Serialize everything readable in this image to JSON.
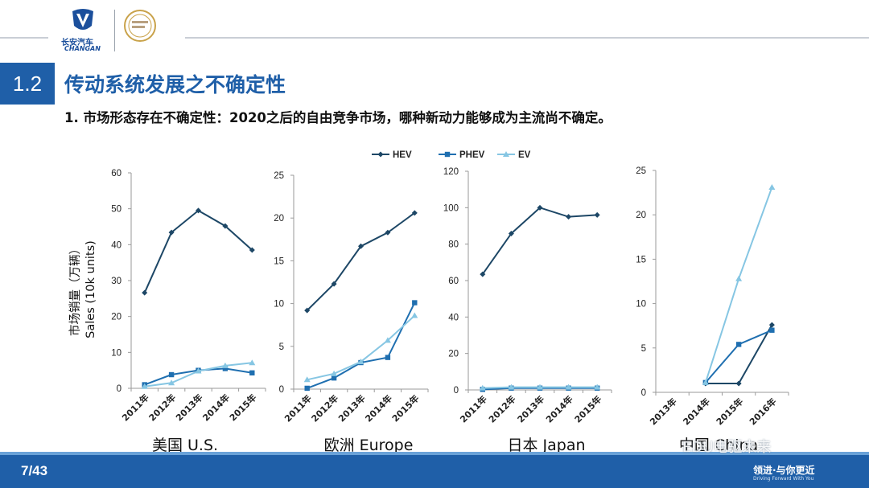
{
  "header": {
    "logo_cn": "长安汽车",
    "logo_en": "CHANGAN",
    "section_number": "1.2",
    "section_title": "传动系统发展之不确定性",
    "subtitle": "1. 市场形态存在不确定性：2020之后的自由竞争市场，哪种新动力能够成为主流尚不确定。"
  },
  "footer": {
    "page": "7/43",
    "slogan": "领进·与你更近",
    "slogan_en": "Driving Forward With You",
    "watermark": "EDU电驱未来"
  },
  "colors": {
    "HEV": "#1d4766",
    "PHEV": "#1f6fb0",
    "EV": "#86c6e3",
    "accent": "#1f5fa8"
  },
  "chart_data": [
    {
      "type": "line",
      "title": "美国 U.S.",
      "ylabel": "市场销量（万辆）\nSales (10k units)",
      "ylim": [
        0,
        60
      ],
      "yticks": [
        0,
        10,
        20,
        30,
        40,
        50,
        60
      ],
      "categories": [
        "2011年",
        "2012年",
        "2013年",
        "2014年",
        "2015年"
      ],
      "series": [
        {
          "name": "HEV",
          "values": [
            26.6,
            43.4,
            49.5,
            45.2,
            38.5
          ]
        },
        {
          "name": "PHEV",
          "values": [
            1.0,
            3.8,
            5.0,
            5.5,
            4.3
          ]
        },
        {
          "name": "EV",
          "values": [
            0.5,
            1.5,
            4.8,
            6.3,
            7.1
          ]
        }
      ]
    },
    {
      "type": "line",
      "title": "欧洲 Europe",
      "ylim": [
        0,
        25
      ],
      "yticks": [
        0,
        5,
        10,
        15,
        20,
        25
      ],
      "categories": [
        "2011年",
        "2012年",
        "2013年",
        "2014年",
        "2015年"
      ],
      "series": [
        {
          "name": "HEV",
          "values": [
            9.2,
            12.3,
            16.7,
            18.3,
            20.6
          ]
        },
        {
          "name": "PHEV",
          "values": [
            0.1,
            1.3,
            3.1,
            3.7,
            10.1
          ]
        },
        {
          "name": "EV",
          "values": [
            1.1,
            1.8,
            3.2,
            5.7,
            8.6
          ]
        }
      ]
    },
    {
      "type": "line",
      "title": "日本 Japan",
      "ylim": [
        0,
        120
      ],
      "yticks": [
        0,
        20,
        40,
        60,
        80,
        100,
        120
      ],
      "categories": [
        "2011年",
        "2012年",
        "2013年",
        "2014年",
        "2015年"
      ],
      "series": [
        {
          "name": "HEV",
          "values": [
            63.5,
            85.8,
            100.0,
            95.0,
            96.0
          ]
        },
        {
          "name": "PHEV",
          "values": [
            0.3,
            1.0,
            1.0,
            1.0,
            1.0
          ]
        },
        {
          "name": "EV",
          "values": [
            1.0,
            1.5,
            1.5,
            1.5,
            1.5
          ]
        }
      ]
    },
    {
      "type": "line",
      "title": "中国 China",
      "ylim": [
        0,
        25
      ],
      "yticks": [
        0,
        5,
        10,
        15,
        20,
        25
      ],
      "categories": [
        "2013年",
        "2014年",
        "2015年",
        "2016年"
      ],
      "series": [
        {
          "name": "HEV",
          "values": [
            null,
            1.0,
            1.0,
            7.6
          ]
        },
        {
          "name": "PHEV",
          "values": [
            null,
            1.1,
            5.4,
            7.0
          ]
        },
        {
          "name": "EV",
          "values": [
            null,
            1.1,
            12.8,
            23.1
          ]
        }
      ]
    }
  ],
  "legend": [
    "HEV",
    "PHEV",
    "EV"
  ]
}
